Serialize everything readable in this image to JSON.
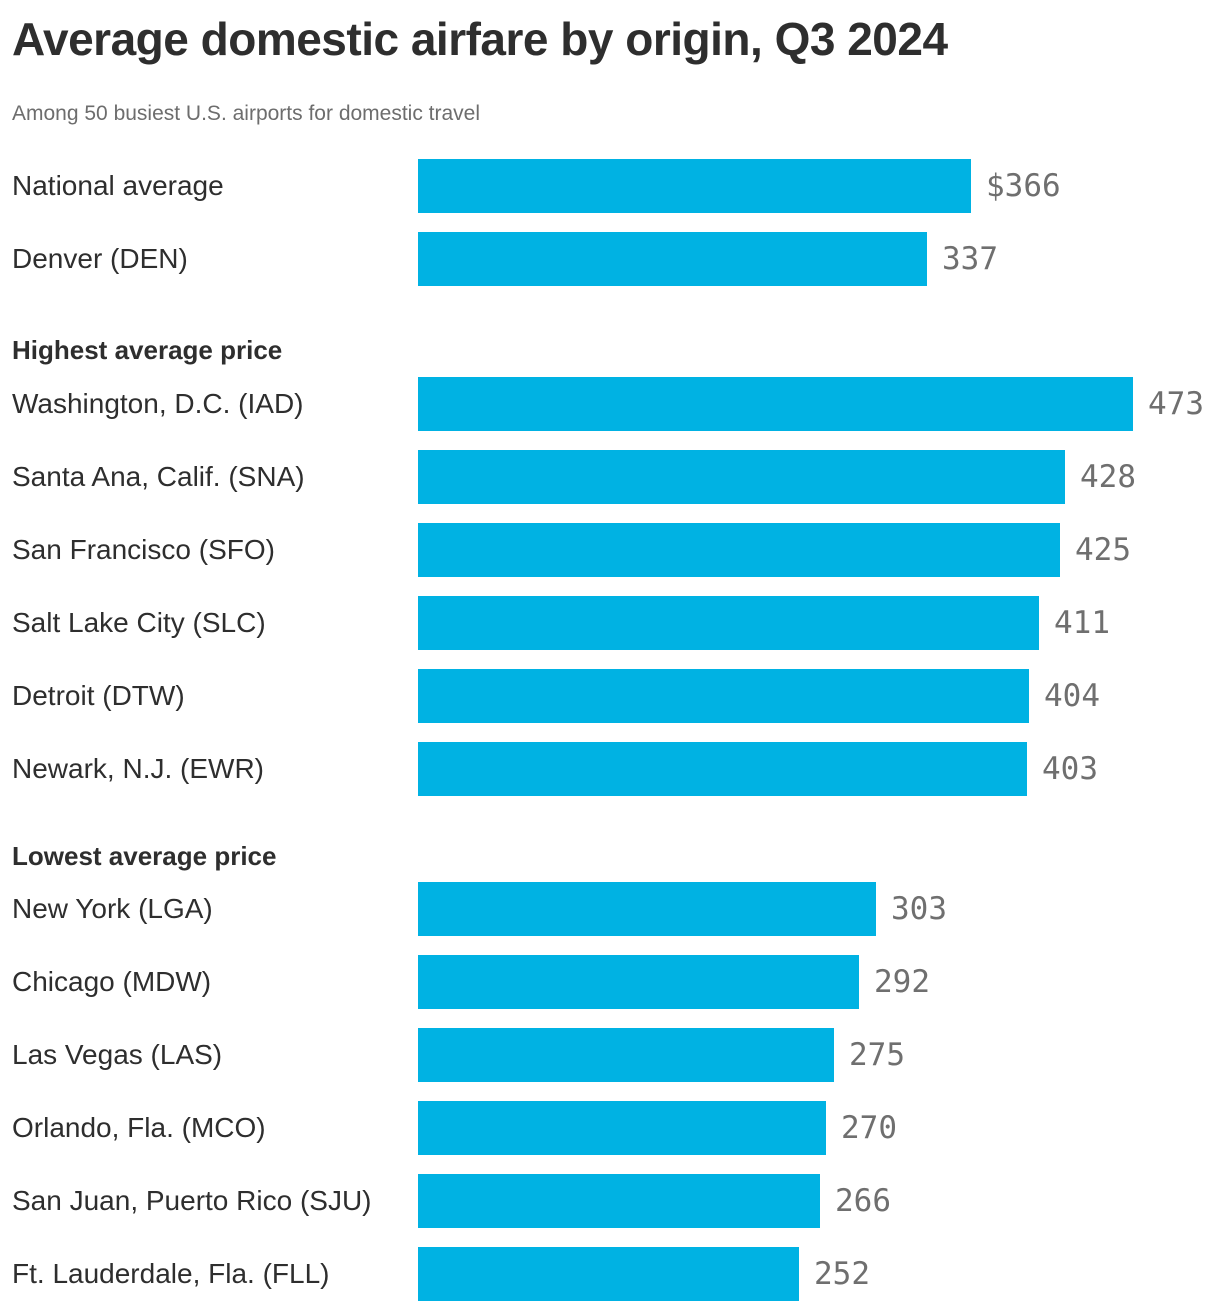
{
  "title": "Average domestic airfare by origin, Q3 2024",
  "subtitle": "Among 50 busiest U.S. airports for domestic travel",
  "colors": {
    "bar": "#00b2e3",
    "heading_text": "#2e2e2e",
    "label_text": "#2e2e2e",
    "value_text": "#6f6f6f",
    "subtitle_text": "#6d6d6d",
    "background": "#ffffff"
  },
  "chart_data": {
    "type": "bar",
    "orientation": "horizontal",
    "unit": "USD",
    "xlim": [
      0,
      473
    ],
    "grid": false,
    "legend": false,
    "value_label_position": "right-of-bar",
    "sections": [
      {
        "header": "",
        "rows": [
          {
            "label": "National average",
            "value": 366,
            "display": "$366"
          },
          {
            "label": "Denver (DEN)",
            "value": 337,
            "display": "337"
          }
        ]
      },
      {
        "header": "Highest average price",
        "rows": [
          {
            "label": "Washington, D.C. (IAD)",
            "value": 473,
            "display": "473"
          },
          {
            "label": "Santa Ana, Calif. (SNA)",
            "value": 428,
            "display": "428"
          },
          {
            "label": "San Francisco (SFO)",
            "value": 425,
            "display": "425"
          },
          {
            "label": "Salt Lake City (SLC)",
            "value": 411,
            "display": "411"
          },
          {
            "label": "Detroit (DTW)",
            "value": 404,
            "display": "404"
          },
          {
            "label": "Newark, N.J. (EWR)",
            "value": 403,
            "display": "403"
          }
        ]
      },
      {
        "header": "Lowest average price",
        "rows": [
          {
            "label": "New York (LGA)",
            "value": 303,
            "display": "303"
          },
          {
            "label": "Chicago (MDW)",
            "value": 292,
            "display": "292"
          },
          {
            "label": "Las Vegas (LAS)",
            "value": 275,
            "display": "275"
          },
          {
            "label": "Orlando, Fla. (MCO)",
            "value": 270,
            "display": "270"
          },
          {
            "label": "San Juan, Puerto Rico (SJU)",
            "value": 266,
            "display": "266"
          },
          {
            "label": "Ft. Lauderdale, Fla. (FLL)",
            "value": 252,
            "display": "252"
          }
        ]
      }
    ]
  }
}
